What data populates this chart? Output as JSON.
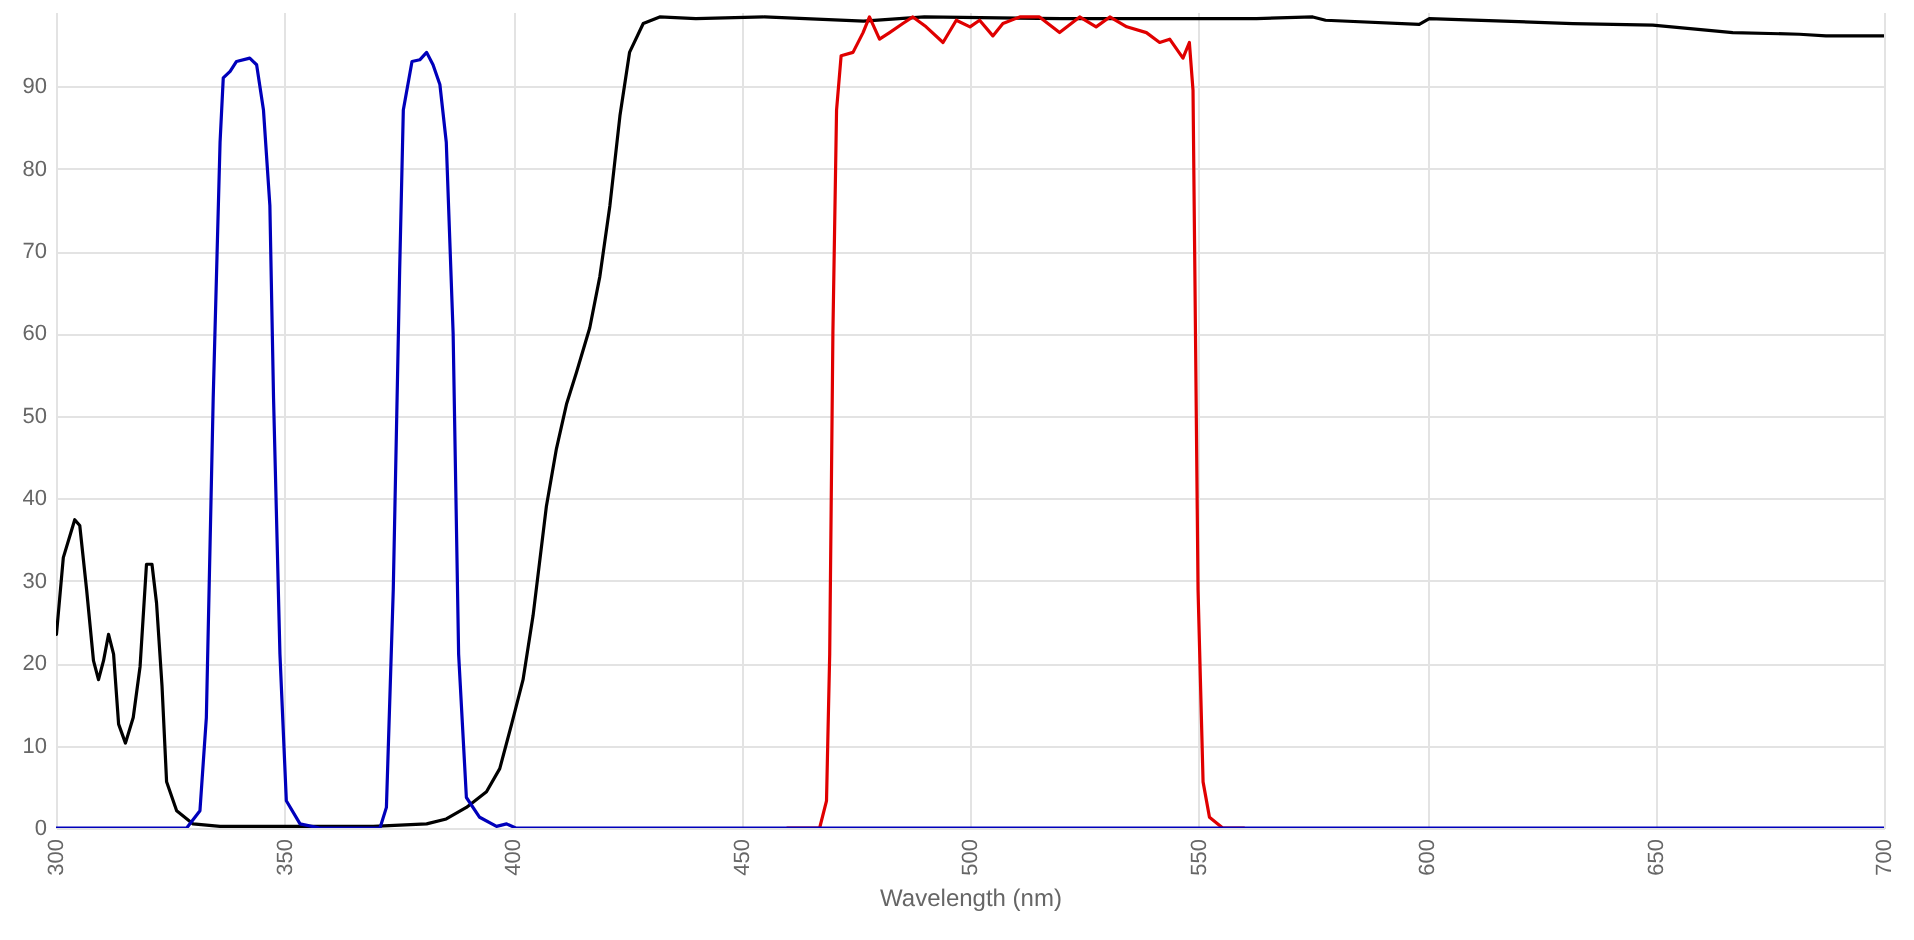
{
  "chart_data": {
    "type": "line",
    "xlabel": "Wavelength (nm)",
    "xlim": [
      300,
      700
    ],
    "xticks": [
      300,
      350,
      400,
      450,
      500,
      550,
      600,
      650,
      700
    ],
    "ylim": [
      0,
      99
    ],
    "yticks": [
      0,
      10,
      20,
      30,
      40,
      50,
      60,
      70,
      80,
      90
    ],
    "grid": true,
    "series": [
      {
        "color": "#000000",
        "x": [
          300.1,
          301.6,
          304.1,
          305.2,
          306.7,
          308.2,
          309.3,
          310.4,
          311.5,
          312.6,
          313.7,
          315.2,
          316.9,
          318.4,
          319.8,
          321.0,
          322.0,
          323.2,
          324.2,
          326.4,
          330.0,
          335.9,
          369.4,
          381.1,
          385.4,
          389.8,
          394.2,
          397.1,
          399.7,
          402.2,
          404.4,
          407.3,
          409.5,
          411.7,
          413.9,
          416.8,
          419.0,
          421.2,
          423.4,
          425.5,
          428.5,
          432.1,
          440,
          455,
          476.7,
          490,
          520,
          562.7,
          575.0,
          577.8,
          598.3,
          600.5,
          631.9,
          649.4,
          666.9,
          681.5,
          687.3,
          700
        ],
        "values": [
          23.5,
          32.8,
          37.4,
          36.7,
          28.9,
          20.3,
          18.0,
          20.3,
          23.5,
          21.1,
          12.6,
          10.3,
          13.4,
          19.6,
          32.0,
          32.0,
          27.3,
          17.2,
          5.6,
          2.1,
          0.5,
          0.2,
          0.2,
          0.5,
          1.1,
          2.5,
          4.4,
          7.2,
          12.6,
          18.0,
          25.8,
          39.0,
          46.0,
          51.4,
          55.3,
          60.7,
          66.9,
          75.5,
          86.4,
          94.1,
          97.6,
          98.4,
          98.2,
          98.4,
          97.9,
          98.4,
          98.2,
          98.2,
          98.4,
          98.0,
          97.5,
          98.2,
          97.6,
          97.4,
          96.5,
          96.3,
          96.1,
          96.1
        ]
      },
      {
        "color": "#e00000",
        "x": [
          460,
          467.1,
          468.6,
          469.3,
          470.0,
          470.8,
          471.8,
          474.4,
          476.6,
          478.0,
          480.2,
          482.4,
          485.3,
          487.5,
          490.4,
          494.1,
          497.0,
          500,
          502.1,
          505.0,
          507.2,
          510.9,
          515.2,
          519.6,
          524.0,
          527.6,
          530.6,
          534.3,
          538.6,
          541.5,
          543.7,
          546.6,
          548.0,
          548.8,
          549.2,
          549.9,
          551.0,
          552.4,
          555.3,
          560
        ],
        "values": [
          0,
          0,
          3.3,
          21.1,
          60.0,
          87.1,
          93.7,
          94.1,
          96.5,
          98.4,
          95.7,
          96.5,
          97.6,
          98.4,
          97.2,
          95.3,
          98.0,
          97.2,
          98.0,
          96.1,
          97.6,
          98.4,
          98.4,
          96.5,
          98.4,
          97.2,
          98.4,
          97.2,
          96.5,
          95.3,
          95.7,
          93.4,
          95.3,
          89.5,
          67.7,
          28.9,
          5.6,
          1.3,
          0,
          0
        ]
      },
      {
        "color": "#0000bb",
        "x": [
          300,
          328.6,
          331.5,
          332.9,
          334.4,
          335.9,
          336.6,
          338.1,
          339.5,
          342.4,
          343.9,
          345.4,
          346.8,
          347.6,
          349.0,
          350.4,
          353.4,
          357.7,
          370.9,
          372.3,
          373.8,
          375.2,
          376.0,
          377.9,
          379.6,
          381.1,
          382.5,
          384.0,
          385.4,
          386.9,
          388.1,
          389.8,
          392.7,
          396.4,
          398.6,
          400.6,
          700
        ],
        "values": [
          0,
          0,
          2.1,
          13.4,
          52.2,
          83.2,
          91.0,
          91.8,
          93.0,
          93.4,
          92.6,
          87.1,
          75.5,
          52.2,
          21.1,
          3.3,
          0.5,
          0,
          0,
          2.5,
          28.9,
          67.7,
          87.1,
          93.0,
          93.2,
          94.1,
          92.6,
          90.2,
          83.2,
          60.0,
          21.1,
          3.7,
          1.3,
          0.2,
          0.5,
          0,
          0
        ]
      }
    ]
  }
}
